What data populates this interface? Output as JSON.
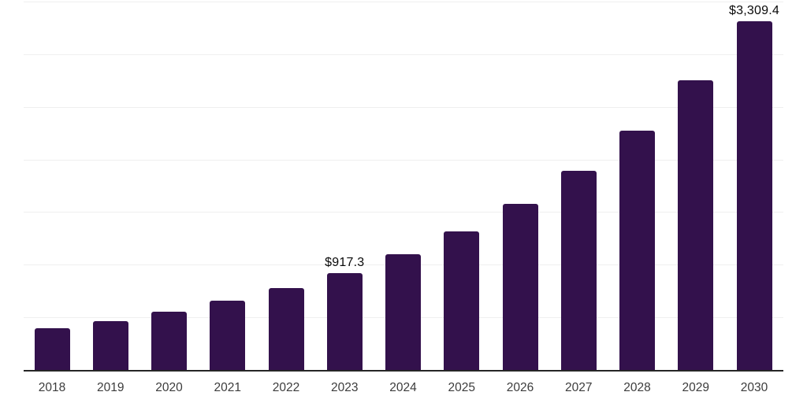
{
  "chart_data": {
    "type": "bar",
    "title": "",
    "xlabel": "",
    "ylabel": "",
    "categories": [
      "2018",
      "2019",
      "2020",
      "2021",
      "2022",
      "2023",
      "2024",
      "2025",
      "2026",
      "2027",
      "2028",
      "2029",
      "2030"
    ],
    "values": [
      395,
      465,
      551,
      655,
      775,
      917.3,
      1100,
      1315,
      1575,
      1890,
      2270,
      2750,
      3309.4
    ],
    "data_labels": [
      "",
      "",
      "",
      "",
      "",
      "$917.3",
      "",
      "",
      "",
      "",
      "",
      "",
      "$3,309.4"
    ],
    "ylim": [
      0,
      3500
    ],
    "gridline_step": 500,
    "grid": true,
    "legend_position": "none",
    "colors": {
      "bar": "#33114C",
      "gridline": "#EFEFEF",
      "axis_line": "#262626",
      "data_label": "#0A0A0A",
      "tick_label": "#3C3C3C",
      "background": "#FFFFFF"
    }
  }
}
